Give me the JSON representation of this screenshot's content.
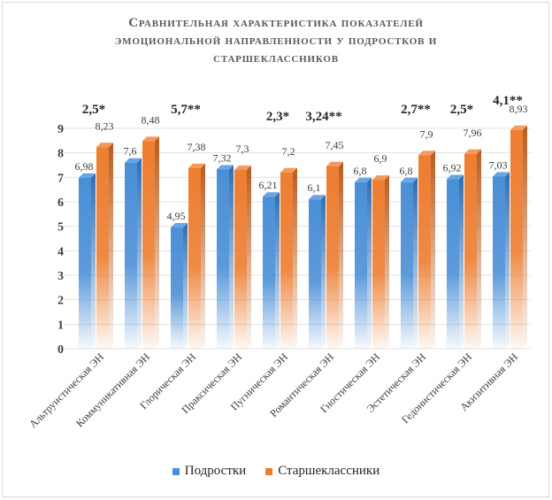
{
  "title_lines": [
    "Сравнительная характеристика показателей",
    "эмоциональной направленности у подростков и",
    "старшеклассников"
  ],
  "colors": {
    "blue": "#4a8fd6",
    "orange": "#ed7d31"
  },
  "chart_data": {
    "type": "bar",
    "ylim": [
      0,
      9
    ],
    "yticks": [
      "0",
      "1",
      "2",
      "3",
      "4",
      "5",
      "6",
      "7",
      "8",
      "9"
    ],
    "categories": [
      "Альтруистическая  ЭН",
      "Коммуникативная  ЭН",
      "Глорическая  ЭН",
      "Праксическая  ЭН",
      "Пугническая  ЭН",
      "Романтическая  ЭН",
      "Гностическая  ЭН",
      "Эстетическая  ЭН",
      "Гедонистическая  ЭН",
      "Акизитивная  ЭН"
    ],
    "series": [
      {
        "name": "Подростки",
        "values": [
          6.98,
          7.6,
          4.95,
          7.32,
          6.21,
          6.1,
          6.8,
          6.8,
          6.92,
          7.03
        ],
        "labels": [
          "6,98",
          "7,6",
          "4,95",
          "7,32",
          "6,21",
          "6,1",
          "6,8",
          "6,8",
          "6,92",
          "7,03"
        ]
      },
      {
        "name": "Старшеклассники",
        "values": [
          8.23,
          8.48,
          7.38,
          7.3,
          7.2,
          7.45,
          6.9,
          7.9,
          7.96,
          8.93
        ],
        "labels": [
          "8,23",
          "8,48",
          "7,38",
          "7,3",
          "7,2",
          "7,45",
          "6,9",
          "7,9",
          "7,96",
          "8,93"
        ]
      }
    ],
    "significance": [
      "2,5*",
      "",
      "5,7**",
      "",
      "2,3*",
      "3,24**",
      "",
      "2,7**",
      "2,5*",
      "4,1**"
    ]
  }
}
